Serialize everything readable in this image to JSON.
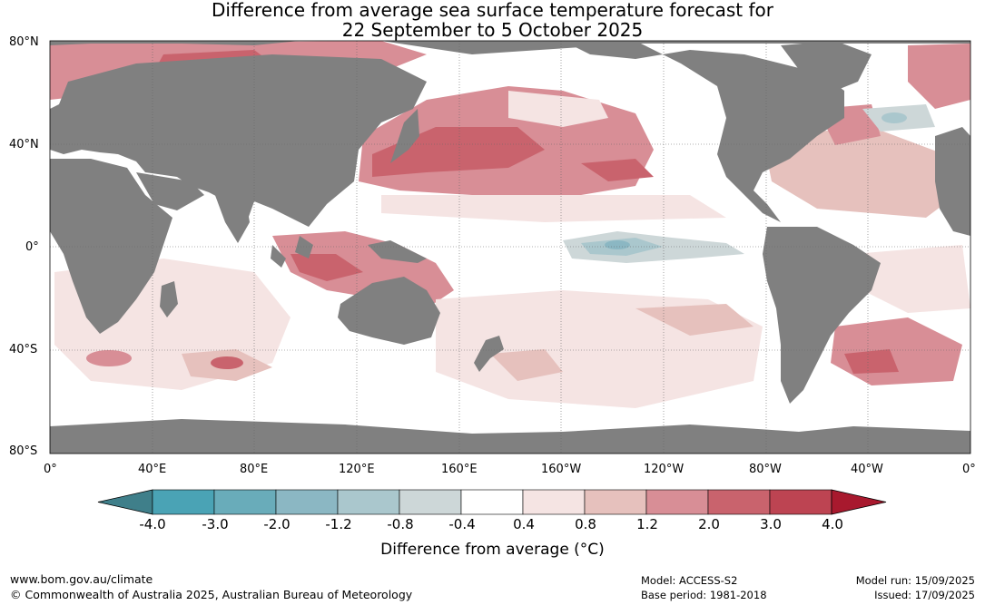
{
  "title_line1": "Difference from average sea surface temperature forecast for",
  "title_line2": "22 September to 5 October 2025",
  "lat_labels": [
    "80°N",
    "40°N",
    "0°",
    "40°S",
    "80°S"
  ],
  "lon_labels": [
    "0°",
    "40°E",
    "80°E",
    "120°E",
    "160°E",
    "160°W",
    "120°W",
    "80°W",
    "40°W",
    "0°"
  ],
  "colorbar": {
    "title": "Difference from average (°C)",
    "ticks": [
      "-4.0",
      "-3.0",
      "-2.0",
      "-1.2",
      "-0.8",
      "-0.4",
      "0.4",
      "0.8",
      "1.2",
      "2.0",
      "3.0",
      "4.0"
    ],
    "colors": [
      "#3f7f8a",
      "#4aa3b5",
      "#69acba",
      "#8bb7c3",
      "#aac7cd",
      "#cdd7d8",
      "#ffffff",
      "#f5e4e3",
      "#e6c1bd",
      "#d88e96",
      "#c9636d",
      "#bd4452",
      "#a8192e"
    ]
  },
  "map_colors": {
    "land": "#808080",
    "ocean": "#ffffff",
    "warm_light": "#f5e4e3",
    "warm_mid": "#e6c1bd",
    "warm": "#d88e96",
    "warm_strong": "#c9636d",
    "warm_max": "#a8192e",
    "cool_light": "#cdd7d8",
    "cool": "#aac7cd",
    "cool_strong": "#8bb7c3"
  },
  "footer": {
    "url": "www.bom.gov.au/climate",
    "copyright": "© Commonwealth of Australia 2025, Australian Bureau of Meteorology",
    "model": "Model: ACCESS-S2",
    "base_period": "Base period: 1981-2018",
    "model_run": "Model run: 15/09/2025",
    "issued": "Issued: 17/09/2025"
  }
}
